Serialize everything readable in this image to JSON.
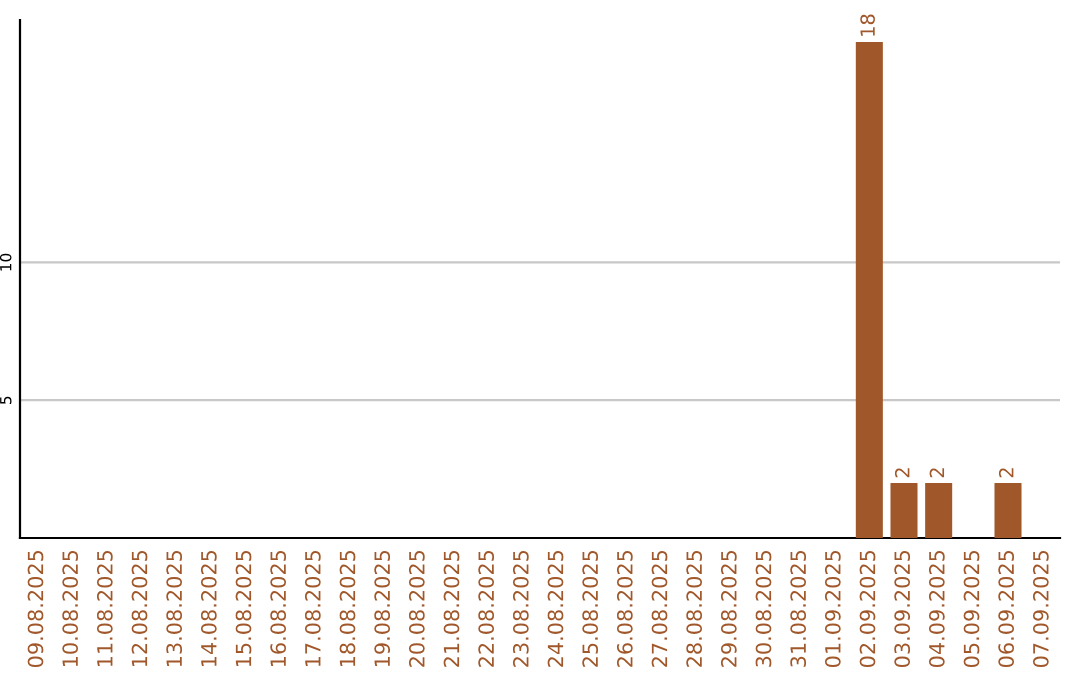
{
  "chart_data": {
    "type": "bar",
    "categories": [
      "09.08.2025",
      "10.08.2025",
      "11.08.2025",
      "12.08.2025",
      "13.08.2025",
      "14.08.2025",
      "15.08.2025",
      "16.08.2025",
      "17.08.2025",
      "18.08.2025",
      "19.08.2025",
      "20.08.2025",
      "21.08.2025",
      "22.08.2025",
      "23.08.2025",
      "24.08.2025",
      "25.08.2025",
      "26.08.2025",
      "27.08.2025",
      "28.08.2025",
      "29.08.2025",
      "30.08.2025",
      "31.08.2025",
      "01.09.2025",
      "02.09.2025",
      "03.09.2025",
      "04.09.2025",
      "05.09.2025",
      "06.09.2025",
      "07.09.2025"
    ],
    "values": [
      0,
      0,
      0,
      0,
      0,
      0,
      0,
      0,
      0,
      0,
      0,
      0,
      0,
      0,
      0,
      0,
      0,
      0,
      0,
      0,
      0,
      0,
      0,
      0,
      18,
      2,
      2,
      0,
      2,
      0
    ],
    "value_labels": [
      null,
      null,
      null,
      null,
      null,
      null,
      null,
      null,
      null,
      null,
      null,
      null,
      null,
      null,
      null,
      null,
      null,
      null,
      null,
      null,
      null,
      null,
      null,
      null,
      "18",
      "2",
      "2",
      null,
      "2",
      null
    ],
    "color": "#a0572a",
    "ylim": [
      0,
      18.8
    ],
    "yticks": [
      5,
      10
    ],
    "grid": "y",
    "legend": false
  }
}
